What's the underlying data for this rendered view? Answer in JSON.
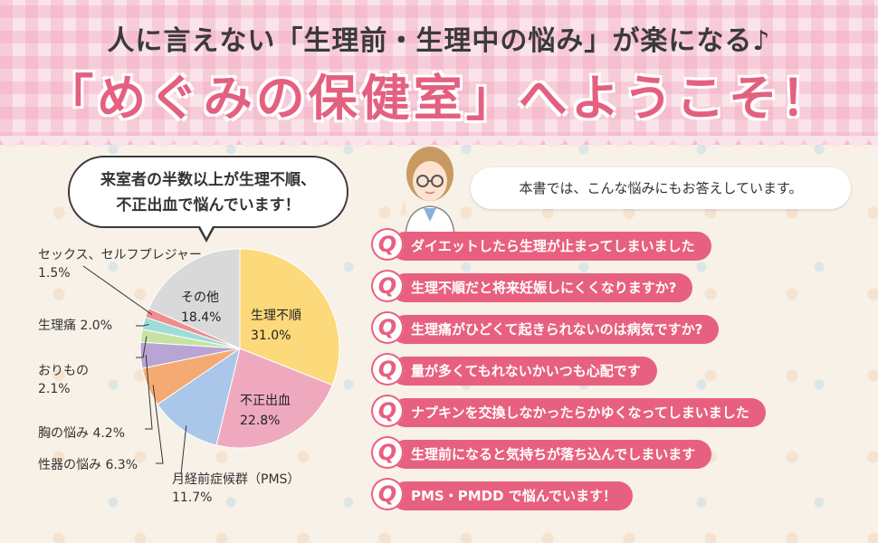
{
  "header": {
    "subtitle": "人に言えない「生理前・生理中の悩み」が楽になる♪",
    "title": "「めぐみの保健室」へようこそ！"
  },
  "bubble": {
    "line1": "来室者の半数以上が生理不順、",
    "line2": "不正出血で悩んでいます！"
  },
  "chart_data": {
    "type": "pie",
    "categories": [
      "生理不順",
      "不正出血",
      "月経前症候群（PMS）",
      "性器の悩み",
      "胸の悩み",
      "おりもの",
      "生理痛",
      "セックス、セルフプレジャー",
      "その他"
    ],
    "values": [
      31.0,
      22.8,
      11.7,
      6.3,
      4.2,
      2.1,
      2.0,
      1.5,
      18.4
    ],
    "value_labels": [
      "31.0%",
      "22.8%",
      "11.7%",
      "6.3%",
      "4.2%",
      "2.1%",
      "2.0%",
      "1.5%",
      "18.4%"
    ],
    "colors": [
      "#fcd97a",
      "#efa9bf",
      "#aac6e8",
      "#f4aa72",
      "#b9a5d4",
      "#c7e3a2",
      "#9fdcd8",
      "#ee8e8e",
      "#d9d9d9"
    ],
    "start_angle_deg": 0,
    "direction": "clockwise"
  },
  "right": {
    "intro": "本書では、こんな悩みにもお答えしています。",
    "q_letter": "Q",
    "questions": [
      "ダイエットしたら生理が止まってしまいました",
      "生理不順だと将来妊娠しにくくなりますか?",
      "生理痛がひどくて起きられないのは病気ですか?",
      "量が多くてもれないかいつも心配です",
      "ナプキンを交換しなかったらかゆくなってしまいました",
      "生理前になると気持ちが落ち込んでしまいます",
      "PMS・PMDD で悩んでいます！"
    ]
  }
}
